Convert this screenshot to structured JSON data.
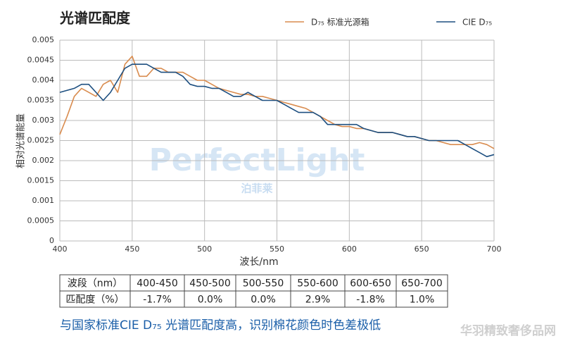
{
  "chart_data": {
    "type": "line",
    "title": "光谱匹配度",
    "x_label": "波长/nm",
    "y_label": "相对光谱能量",
    "x": [
      400,
      405,
      410,
      415,
      420,
      425,
      430,
      435,
      440,
      445,
      450,
      455,
      460,
      465,
      470,
      475,
      480,
      485,
      490,
      495,
      500,
      505,
      510,
      515,
      520,
      525,
      530,
      535,
      540,
      545,
      550,
      555,
      560,
      565,
      570,
      575,
      580,
      585,
      590,
      595,
      600,
      605,
      610,
      615,
      620,
      625,
      630,
      635,
      640,
      645,
      650,
      655,
      660,
      665,
      670,
      675,
      680,
      685,
      690,
      695,
      700
    ],
    "series": [
      {
        "name": "D₇₅ 标准光源箱",
        "color": "#d98c4f",
        "values": [
          0.00265,
          0.0031,
          0.0036,
          0.0038,
          0.0037,
          0.0036,
          0.0039,
          0.004,
          0.0037,
          0.0044,
          0.0046,
          0.0041,
          0.0041,
          0.0043,
          0.0043,
          0.0042,
          0.0042,
          0.0042,
          0.0041,
          0.004,
          0.004,
          0.0039,
          0.0038,
          0.00375,
          0.0037,
          0.00365,
          0.00365,
          0.0036,
          0.0036,
          0.00355,
          0.0035,
          0.00345,
          0.0034,
          0.00335,
          0.0033,
          0.0032,
          0.0031,
          0.003,
          0.0029,
          0.00285,
          0.00285,
          0.0028,
          0.0028,
          0.00275,
          0.0027,
          0.0027,
          0.0027,
          0.00265,
          0.0026,
          0.0026,
          0.00255,
          0.0025,
          0.0025,
          0.00245,
          0.0024,
          0.0024,
          0.0024,
          0.0024,
          0.00245,
          0.0024,
          0.0023
        ]
      },
      {
        "name": "CIE D₇₅",
        "color": "#1d4f80",
        "values": [
          0.0037,
          0.00375,
          0.0038,
          0.0039,
          0.0039,
          0.0037,
          0.0035,
          0.0037,
          0.004,
          0.0043,
          0.0044,
          0.0044,
          0.0044,
          0.0043,
          0.0042,
          0.0042,
          0.0042,
          0.0041,
          0.0039,
          0.00385,
          0.00385,
          0.0038,
          0.0038,
          0.0037,
          0.0036,
          0.0036,
          0.0037,
          0.0036,
          0.0035,
          0.0035,
          0.0035,
          0.0034,
          0.0033,
          0.0032,
          0.0032,
          0.0032,
          0.0031,
          0.0029,
          0.0029,
          0.0029,
          0.0029,
          0.0029,
          0.0028,
          0.00275,
          0.0027,
          0.0027,
          0.0027,
          0.00265,
          0.0026,
          0.0026,
          0.00255,
          0.0025,
          0.0025,
          0.0025,
          0.0025,
          0.0025,
          0.0024,
          0.0023,
          0.0022,
          0.0021,
          0.00215
        ]
      }
    ],
    "xlim": [
      400,
      700
    ],
    "xticks": [
      400,
      450,
      500,
      550,
      600,
      650,
      700
    ],
    "ylim": [
      0,
      0.005
    ],
    "yticks": [
      0,
      0.0005,
      0.001,
      0.0015,
      0.002,
      0.0025,
      0.003,
      0.0035,
      0.004,
      0.0045,
      0.005
    ],
    "grid": true,
    "legend": "top-right"
  },
  "table": {
    "rows": [
      [
        "波段（nm）",
        "400-450",
        "450-500",
        "500-550",
        "550-600",
        "600-650",
        "650-700"
      ],
      [
        "匹配度（%）",
        "-1.7%",
        "0.0%",
        "0.0%",
        "2.9%",
        "-1.8%",
        "1.0%"
      ]
    ]
  },
  "caption": "与国家标准CIE D₇₅ 光谱匹配度高，识别棉花颜色时色差极低",
  "watermark": {
    "brand": "PerfectLight",
    "brand_cn": "泊菲莱",
    "site": "华羽精致奢侈品网"
  }
}
